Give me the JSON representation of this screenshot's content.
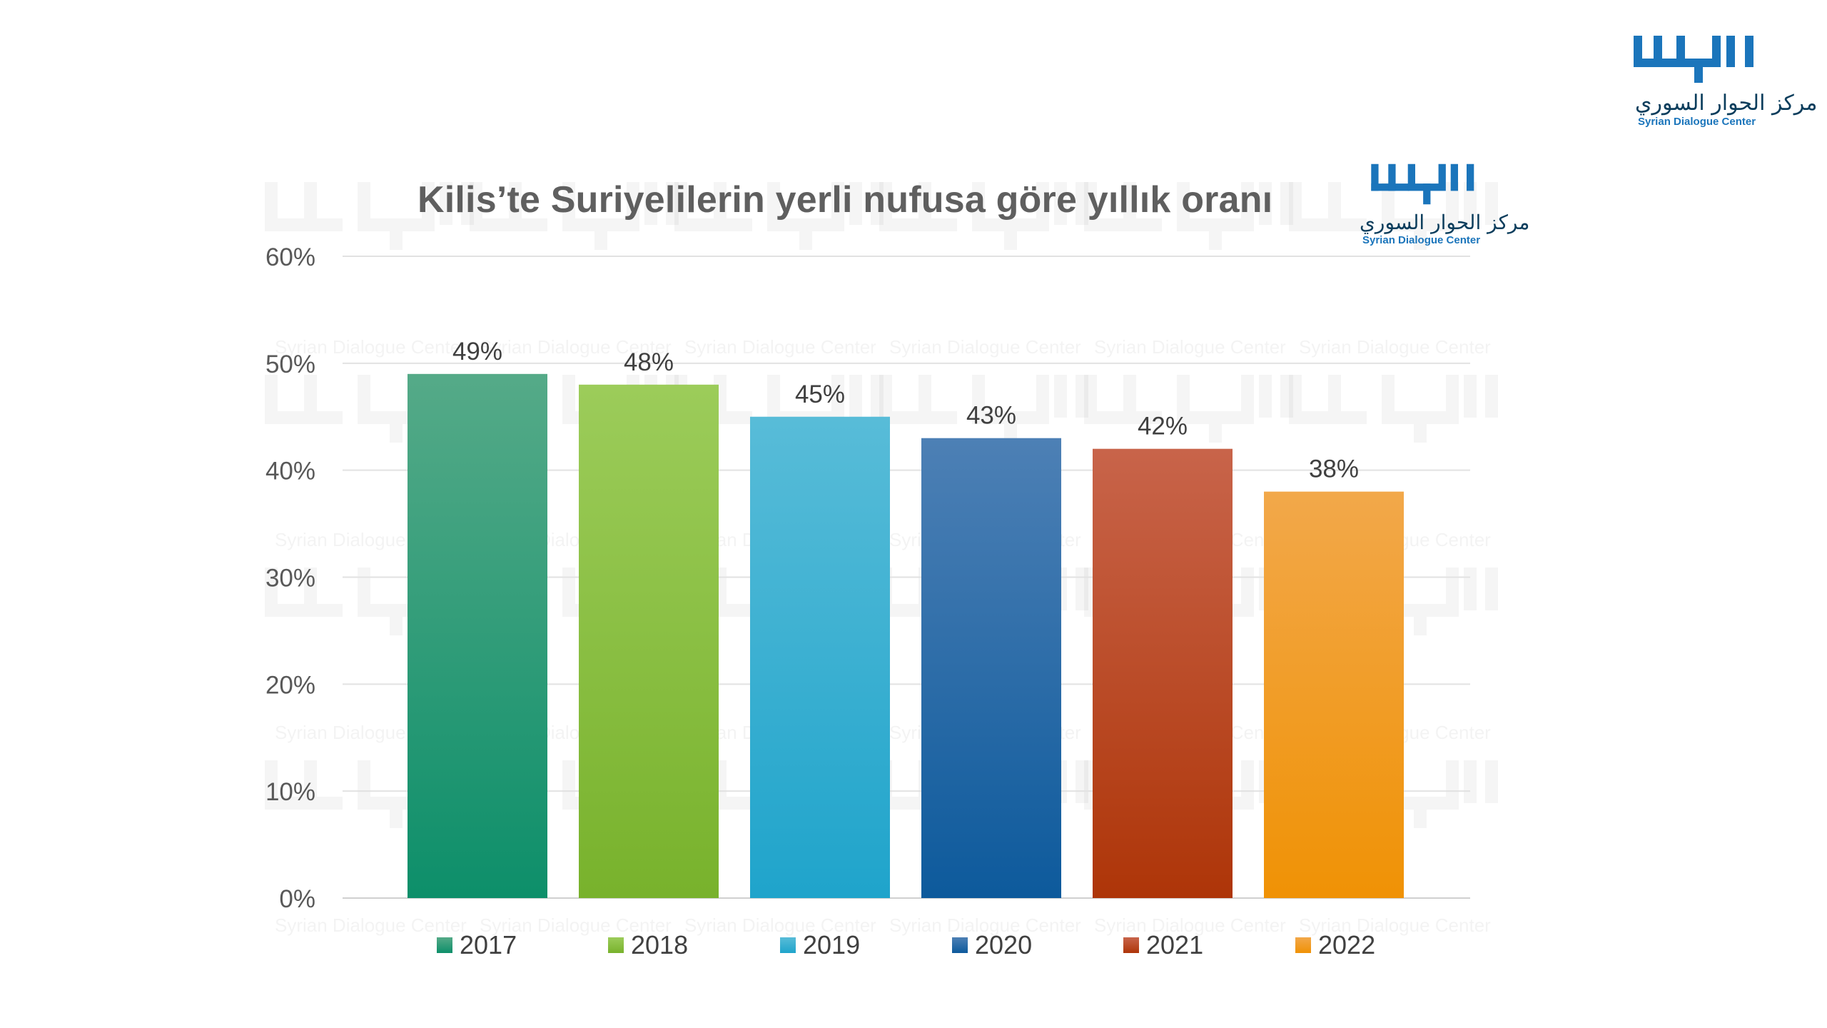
{
  "brand": {
    "english": "Syrian Dialogue Center",
    "arabic": "مركز الحوار السوري",
    "logo_mark": "الحوار",
    "color": "#1b75bb"
  },
  "chart_data": {
    "type": "bar",
    "title": "Kilis’te Suriyelilerin yerli nufusa göre yıllık oranı",
    "categories": [
      "2017",
      "2018",
      "2019",
      "2020",
      "2021",
      "2022"
    ],
    "values": [
      49,
      48,
      45,
      43,
      42,
      38
    ],
    "value_labels": [
      "49%",
      "48%",
      "45%",
      "43%",
      "42%",
      "38%"
    ],
    "y_ticks": [
      "0%",
      "10%",
      "20%",
      "30%",
      "40%",
      "50%",
      "60%"
    ],
    "ylim": [
      0,
      60
    ],
    "xlabel": "",
    "ylabel": "",
    "grid": true,
    "legend_position": "bottom",
    "colors": [
      [
        "#55aa88",
        "#0d8f6a"
      ],
      [
        "#9ccc5a",
        "#78b22c"
      ],
      [
        "#58bcd8",
        "#1fa4cb"
      ],
      [
        "#4d80b5",
        "#0d5a9c"
      ],
      [
        "#c8644a",
        "#ae3508"
      ],
      [
        "#f2a84a",
        "#f09205"
      ]
    ]
  }
}
